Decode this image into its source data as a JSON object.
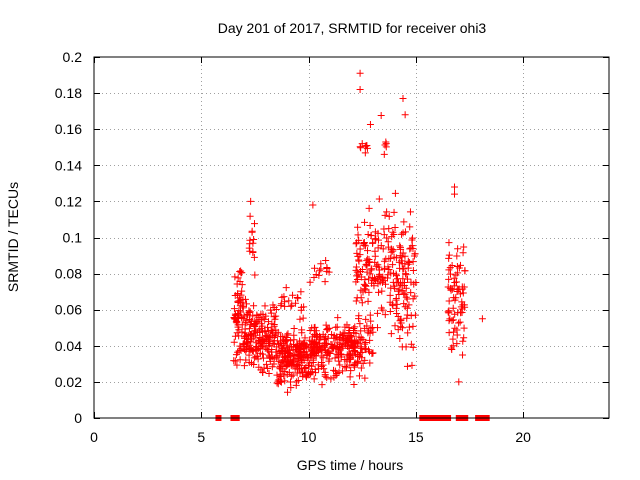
{
  "chart_data": {
    "type": "scatter",
    "title": "Day 201 of 2017, SRMTID for receiver ohi3",
    "xlabel": "GPS time / hours",
    "ylabel": "SRMTID / TECUs",
    "xlim": [
      0,
      24
    ],
    "ylim": [
      0,
      0.2
    ],
    "x_ticks": [
      0,
      5,
      10,
      15,
      20
    ],
    "x_tick_labels": [
      "0",
      "5",
      "10",
      "15",
      "20"
    ],
    "y_ticks": [
      0,
      0.02,
      0.04,
      0.06,
      0.08,
      0.1,
      0.12,
      0.14,
      0.16,
      0.18,
      0.2
    ],
    "y_tick_labels": [
      "0",
      "0.02",
      "0.04",
      "0.06",
      "0.08",
      "0.1",
      "0.12",
      "0.14",
      "0.16",
      "0.18",
      "0.2"
    ],
    "grid": true,
    "marker": "plus",
    "series_color": "#ff0000",
    "point_clusters": [
      {
        "x_range": [
          6.5,
          7.0
        ],
        "y_range": [
          0.02,
          0.09
        ],
        "count": 70
      },
      {
        "x_range": [
          7.0,
          8.5
        ],
        "y_range": [
          0.02,
          0.07
        ],
        "count": 180
      },
      {
        "x_range": [
          7.2,
          7.5
        ],
        "y_range": [
          0.07,
          0.12
        ],
        "count": 14
      },
      {
        "x_range": [
          8.5,
          10.0
        ],
        "y_range": [
          0.012,
          0.055
        ],
        "count": 190
      },
      {
        "x_range": [
          8.6,
          9.8
        ],
        "y_range": [
          0.05,
          0.075
        ],
        "count": 20
      },
      {
        "x_range": [
          10.0,
          12.3
        ],
        "y_range": [
          0.015,
          0.06
        ],
        "count": 220
      },
      {
        "x_range": [
          10.0,
          11.0
        ],
        "y_range": [
          0.06,
          0.1
        ],
        "count": 14
      },
      {
        "x_range": [
          11.8,
          13.0
        ],
        "y_range": [
          0.02,
          0.06
        ],
        "count": 60
      },
      {
        "x_range": [
          12.2,
          14.0
        ],
        "y_range": [
          0.04,
          0.13
        ],
        "count": 150
      },
      {
        "x_range": [
          12.4,
          13.8
        ],
        "y_range": [
          0.13,
          0.17
        ],
        "count": 14
      },
      {
        "x_range": [
          14.0,
          15.0
        ],
        "y_range": [
          0.02,
          0.13
        ],
        "count": 100
      },
      {
        "x_range": [
          16.5,
          17.3
        ],
        "y_range": [
          0.02,
          0.11
        ],
        "count": 75
      }
    ],
    "notable_points": [
      {
        "x": 12.4,
        "y": 0.191
      },
      {
        "x": 12.4,
        "y": 0.182
      },
      {
        "x": 14.4,
        "y": 0.177
      },
      {
        "x": 14.5,
        "y": 0.168
      },
      {
        "x": 12.5,
        "y": 0.152
      },
      {
        "x": 7.3,
        "y": 0.12
      },
      {
        "x": 10.2,
        "y": 0.118
      },
      {
        "x": 16.8,
        "y": 0.128
      },
      {
        "x": 16.8,
        "y": 0.124
      },
      {
        "x": 18.1,
        "y": 0.055
      },
      {
        "x": 17.0,
        "y": 0.02
      }
    ],
    "zero_points_x": [
      5.8,
      6.5,
      6.6,
      6.65,
      15.3,
      15.5,
      15.7,
      15.9,
      16.1,
      16.3,
      16.5,
      17.0,
      17.2,
      17.3,
      17.9,
      18.0,
      18.1,
      18.3
    ]
  }
}
